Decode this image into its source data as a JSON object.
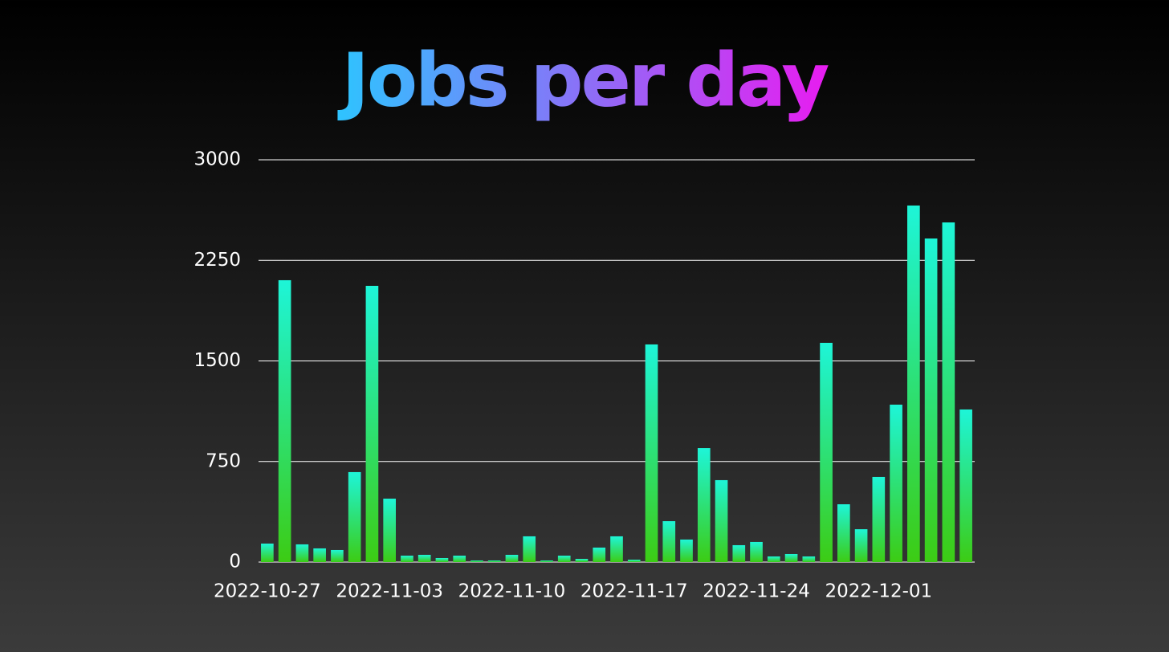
{
  "chart_data": {
    "type": "bar",
    "title": "Jobs per day",
    "categories": [
      "2022-10-27",
      null,
      null,
      null,
      null,
      null,
      null,
      "2022-11-03",
      null,
      null,
      null,
      null,
      null,
      null,
      "2022-11-10",
      null,
      null,
      null,
      null,
      null,
      null,
      "2022-11-17",
      null,
      null,
      null,
      null,
      null,
      null,
      "2022-11-24",
      null,
      null,
      null,
      null,
      null,
      null,
      "2022-12-01",
      null,
      null,
      null,
      null,
      null
    ],
    "values": [
      138,
      2102,
      132,
      102,
      90,
      671,
      2060,
      473,
      48,
      54,
      30,
      48,
      12,
      12,
      54,
      192,
      12,
      48,
      24,
      108,
      192,
      18,
      1623,
      305,
      168,
      850,
      611,
      126,
      150,
      42,
      60,
      42,
      1635,
      431,
      245,
      635,
      1174,
      2659,
      2413,
      2533,
      1138
    ],
    "color": [
      "#1ef5d8",
      "#3ccc14"
    ],
    "ylim": [
      0,
      3000
    ],
    "yticks": [
      0,
      750,
      1500,
      2250,
      3000
    ],
    "grid": true
  }
}
